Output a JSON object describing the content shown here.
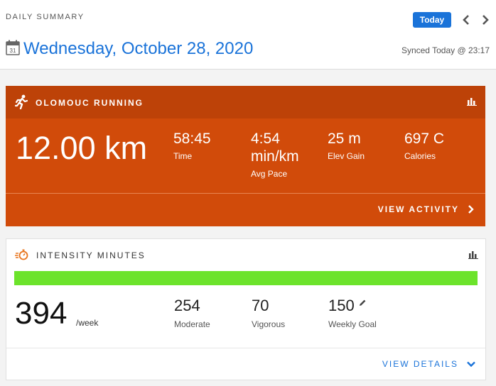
{
  "header": {
    "eyebrow": "DAILY SUMMARY",
    "today_label": "Today",
    "date": "Wednesday, October 28, 2020",
    "calendar_day": "31",
    "synced": "Synced Today @ 23:17"
  },
  "activity": {
    "name": "OLOMOUC RUNNING",
    "distance": "12.00 km",
    "metrics": [
      {
        "value": "58:45",
        "label": "Time"
      },
      {
        "value": "4:54 min/km",
        "label": "Avg Pace"
      },
      {
        "value": "25 m",
        "label": "Elev Gain"
      },
      {
        "value": "697 C",
        "label": "Calories"
      }
    ],
    "view_label": "VIEW ACTIVITY",
    "color": "#d14b0a",
    "header_color": "#bd4208"
  },
  "intensity": {
    "title": "INTENSITY MINUTES",
    "total": "394",
    "unit": "/week",
    "progress_fraction": 1.0,
    "progress_color": "#6ce32b",
    "metrics": [
      {
        "value": "254",
        "label": "Moderate"
      },
      {
        "value": "70",
        "label": "Vigorous"
      },
      {
        "value": "150",
        "label": "Weekly Goal"
      }
    ],
    "view_label": "VIEW DETAILS"
  },
  "icons": {
    "calendar": "calendar-icon",
    "prev": "chevron-left-icon",
    "next": "chevron-right-icon",
    "run": "running-icon",
    "chart": "bar-chart-icon",
    "stopwatch": "stopwatch-icon",
    "edit": "pencil-icon"
  },
  "accent_color": "#1a73d9"
}
